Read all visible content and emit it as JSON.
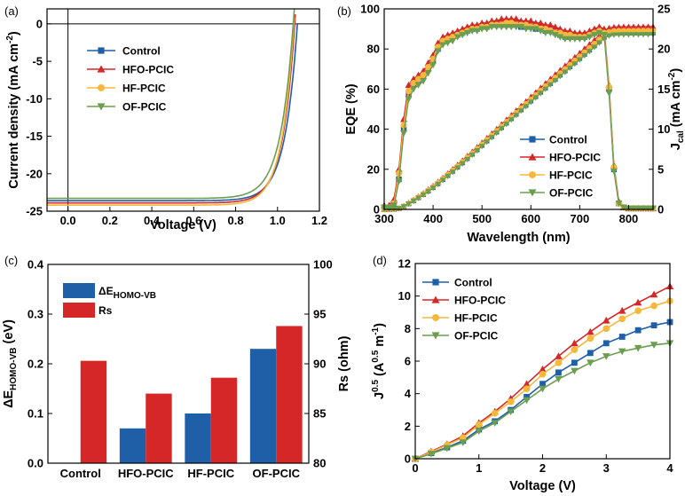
{
  "colors": {
    "Control": "#1f5fa8",
    "HFO-PCIC": "#d62728",
    "HF-PCIC": "#f5b83d",
    "OF-PCIC": "#6b9e4f",
    "bar_blue": "#1f5fa8",
    "bar_red": "#d62728"
  },
  "chart_data": [
    {
      "panel": "(a)",
      "type": "line",
      "xlabel_parts": [
        "Voltage (V)"
      ],
      "ylabel_parts": [
        "Current density (mA cm",
        "-2",
        ")"
      ],
      "xlim": [
        -0.1,
        1.2
      ],
      "ylim": [
        -25,
        2
      ],
      "xticks": [
        0.0,
        0.2,
        0.4,
        0.6,
        0.8,
        1.0,
        1.2
      ],
      "yticks": [
        -25,
        -20,
        -15,
        -10,
        -5,
        0
      ],
      "legend": [
        "Control",
        "HFO-PCIC",
        "HF-PCIC",
        "OF-PCIC"
      ],
      "series": [
        {
          "name": "Control",
          "marker": "square",
          "jsc": -23.6,
          "voc": 1.095,
          "k": 0.06
        },
        {
          "name": "HFO-PCIC",
          "marker": "triangle",
          "jsc": -23.9,
          "voc": 1.082,
          "k": 0.058
        },
        {
          "name": "HF-PCIC",
          "marker": "circle",
          "jsc": -24.2,
          "voc": 1.078,
          "k": 0.058
        },
        {
          "name": "OF-PCIC",
          "marker": "tri-down",
          "jsc": -23.3,
          "voc": 1.075,
          "k": 0.062
        }
      ]
    },
    {
      "panel": "(b)",
      "type": "line",
      "xlabel_parts": [
        "Wavelength (nm)"
      ],
      "ylabel_parts": [
        "EQE (%)"
      ],
      "y2label_parts": [
        "J",
        "cal",
        " (mA cm",
        "-2",
        ")"
      ],
      "xlim": [
        300,
        850
      ],
      "ylim": [
        0,
        100
      ],
      "y2lim": [
        0,
        25
      ],
      "xticks": [
        300,
        400,
        500,
        600,
        700,
        800
      ],
      "yticks": [
        0,
        20,
        40,
        60,
        80,
        100
      ],
      "y2ticks": [
        0,
        5,
        10,
        15,
        20,
        25
      ],
      "legend": [
        "Control",
        "HFO-PCIC",
        "HF-PCIC",
        "OF-PCIC"
      ],
      "eqe_x": [
        300,
        310,
        320,
        330,
        340,
        350,
        360,
        370,
        380,
        390,
        400,
        410,
        420,
        430,
        440,
        450,
        460,
        470,
        480,
        490,
        500,
        510,
        520,
        530,
        540,
        550,
        560,
        570,
        580,
        590,
        600,
        610,
        620,
        630,
        640,
        650,
        660,
        670,
        680,
        690,
        700,
        710,
        720,
        730,
        740,
        750,
        760,
        770,
        780,
        790,
        800,
        810,
        820,
        830,
        840,
        850
      ],
      "eqe": {
        "Control": [
          1,
          1,
          2,
          15,
          40,
          57,
          62,
          64,
          66,
          70,
          74,
          80,
          84,
          85,
          86,
          87,
          88,
          89,
          90,
          90,
          91,
          91,
          92,
          92,
          92,
          92,
          92,
          92,
          91,
          91,
          91,
          90,
          90,
          89,
          89,
          88,
          87,
          86,
          86,
          86,
          86,
          86,
          87,
          88,
          89,
          88,
          60,
          20,
          3,
          1,
          0.5,
          0.5,
          0.5,
          0.5,
          0.5,
          0.5
        ],
        "HFO-PCIC": [
          2,
          2,
          5,
          20,
          45,
          62,
          65,
          67,
          69,
          73,
          77,
          83,
          86,
          87,
          88,
          89,
          90,
          91,
          92,
          92,
          93,
          93,
          94,
          94,
          95,
          95,
          95,
          95,
          94,
          94,
          94,
          93,
          93,
          92,
          92,
          91,
          90,
          89,
          89,
          88,
          88,
          88,
          89,
          90,
          91,
          90,
          62,
          22,
          4,
          1,
          0.5,
          0.5,
          0.5,
          0.5,
          0.5,
          0.5
        ],
        "HF-PCIC": [
          1,
          1,
          3,
          18,
          42,
          59,
          63,
          65,
          67,
          71,
          75,
          81,
          84,
          85,
          86,
          87,
          88,
          89,
          90,
          90,
          91,
          91,
          92,
          92,
          92,
          93,
          93,
          92,
          92,
          92,
          91,
          91,
          90,
          90,
          89,
          88,
          88,
          87,
          87,
          86,
          86,
          86,
          87,
          88,
          89,
          88,
          61,
          21,
          3,
          1,
          0.5,
          0.5,
          0.5,
          0.5,
          0.5,
          0.5
        ],
        "OF-PCIC": [
          1,
          1,
          2,
          14,
          38,
          55,
          60,
          62,
          64,
          68,
          72,
          79,
          82,
          83,
          84,
          86,
          87,
          88,
          89,
          89,
          90,
          90,
          91,
          91,
          91,
          91,
          91,
          91,
          91,
          90,
          90,
          90,
          89,
          88,
          88,
          87,
          86,
          85,
          85,
          85,
          85,
          85,
          86,
          87,
          88,
          87,
          58,
          19,
          3,
          1,
          0.5,
          0.5,
          0.5,
          0.5,
          0.5,
          0.5
        ]
      },
      "jcal_final": {
        "Control": 22.0,
        "HFO-PCIC": 22.8,
        "HF-PCIC": 22.3,
        "OF-PCIC": 21.8
      }
    },
    {
      "panel": "(c)",
      "type": "bar",
      "categories": [
        "Control",
        "HFO-PCIC",
        "HF-PCIC",
        "OF-PCIC"
      ],
      "ylabel_parts": [
        "ΔE",
        "HOMO-VB",
        " (eV)"
      ],
      "y2label_parts": [
        "Rs (ohm)"
      ],
      "ylim": [
        0,
        0.4
      ],
      "y2lim": [
        80,
        100
      ],
      "yticks": [
        0.0,
        0.1,
        0.2,
        0.3,
        0.4
      ],
      "y2ticks": [
        80,
        85,
        90,
        95,
        100
      ],
      "series": [
        {
          "name_parts": [
            "ΔE",
            "HOMO-VB"
          ],
          "axis": "left",
          "color_key": "bar_blue",
          "values": [
            0,
            0.07,
            0.1,
            0.23
          ]
        },
        {
          "name_parts": [
            "Rs"
          ],
          "axis": "right",
          "color_key": "bar_red",
          "values": [
            90.3,
            87.0,
            88.6,
            93.8
          ]
        }
      ]
    },
    {
      "panel": "(d)",
      "type": "line",
      "xlabel_parts": [
        "Voltage (V)"
      ],
      "ylabel_parts": [
        "J",
        "0.5",
        " (A",
        "0.5",
        " m",
        "-1",
        ")"
      ],
      "xlim": [
        0,
        4
      ],
      "ylim": [
        0,
        12
      ],
      "xticks": [
        0,
        1,
        2,
        3,
        4
      ],
      "yticks": [
        0,
        2,
        4,
        6,
        8,
        10,
        12
      ],
      "legend": [
        "Control",
        "HFO-PCIC",
        "HF-PCIC",
        "OF-PCIC"
      ],
      "x": [
        0,
        0.25,
        0.5,
        0.75,
        1,
        1.25,
        1.5,
        1.75,
        2,
        2.25,
        2.5,
        2.75,
        3,
        3.25,
        3.5,
        3.75,
        4
      ],
      "series": [
        {
          "name": "Control",
          "marker": "square",
          "values": [
            0,
            0.35,
            0.7,
            1.1,
            1.8,
            2.3,
            3.0,
            3.8,
            4.6,
            5.3,
            5.9,
            6.5,
            7.1,
            7.5,
            7.9,
            8.2,
            8.4
          ]
        },
        {
          "name": "HFO-PCIC",
          "marker": "triangle",
          "values": [
            0,
            0.45,
            0.9,
            1.4,
            2.2,
            2.9,
            3.7,
            4.6,
            5.5,
            6.3,
            7.1,
            7.8,
            8.5,
            9.1,
            9.6,
            10.1,
            10.6
          ]
        },
        {
          "name": "HF-PCIC",
          "marker": "circle",
          "values": [
            0,
            0.4,
            0.85,
            1.3,
            2.1,
            2.8,
            3.5,
            4.3,
            5.2,
            5.9,
            6.7,
            7.4,
            8.0,
            8.6,
            9.1,
            9.4,
            9.7
          ]
        },
        {
          "name": "OF-PCIC",
          "marker": "tri-down",
          "values": [
            0,
            0.3,
            0.65,
            1.0,
            1.7,
            2.2,
            2.9,
            3.6,
            4.3,
            4.9,
            5.4,
            5.9,
            6.3,
            6.6,
            6.8,
            7.0,
            7.1
          ]
        }
      ]
    }
  ]
}
